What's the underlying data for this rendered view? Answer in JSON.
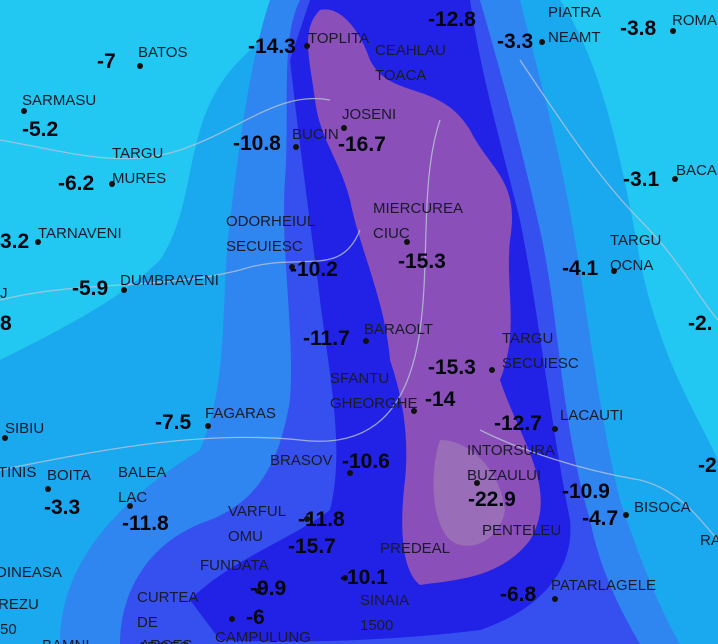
{
  "stations": [
    {
      "name": [
        "BATOS"
      ],
      "value": -7
    },
    {
      "name": [
        "TOPLITA"
      ],
      "value": -14.3
    },
    {
      "name": [
        "CEAHLAU",
        "TOACA"
      ]
    },
    {
      "name": [
        "PIATRA",
        "NEAMT"
      ],
      "value": -3.3
    },
    {
      "name": [
        "ROMA"
      ],
      "value": -3.8
    },
    {
      "name": [
        "SARMASU"
      ],
      "value": -5.2
    },
    {
      "name": [
        "JOSENI"
      ],
      "value": -16.7
    },
    {
      "name": [
        "BUCIN"
      ],
      "value": -10.8
    },
    {
      "name": [
        "TARGU",
        "MURES"
      ],
      "value": -6.2
    },
    {
      "name": [
        "BACA"
      ],
      "value": -3.1
    },
    {
      "name": [
        "MIERCUREA",
        "CIUC"
      ],
      "value": -15.3
    },
    {
      "name": [
        "ODORHEIUL",
        "SECUIESC"
      ],
      "value": -10.2
    },
    {
      "name": [
        "TARNAVENI"
      ],
      "value": "3.2"
    },
    {
      "name": [
        "TARGU",
        "OCNA"
      ],
      "value": -4.1
    },
    {
      "name": [
        "DUMBRAVENI"
      ],
      "value": -5.9
    },
    {
      "name": [
        "BARAOLT"
      ],
      "value": -11.7
    },
    {
      "name": [
        "TARGU",
        "SECUIESC"
      ],
      "value": -15.3
    },
    {
      "name": [
        "SFANTU",
        "GHEORGHE"
      ],
      "value": -14
    },
    {
      "name": [
        "FAGARAS"
      ],
      "value": -7.5
    },
    {
      "name": [
        "SIBIU"
      ]
    },
    {
      "name": [
        "LACAUTI"
      ],
      "value": -12.7
    },
    {
      "name": [
        "INTORSURA",
        "BUZAULUI"
      ],
      "value": -22.9
    },
    {
      "name": [
        "BRASOV"
      ],
      "value": -10.6
    },
    {
      "name": [
        "BOITA"
      ],
      "value": -3.3
    },
    {
      "name": [
        "BALEA",
        "LAC"
      ],
      "value": -11.8
    },
    {
      "name": [
        "BISOCA"
      ],
      "value": -4.7
    },
    {
      "name": [
        "VARFUL",
        "OMU"
      ],
      "value": -11.8
    },
    {
      "name": [
        "PREDEAL"
      ]
    },
    {
      "name": [
        "SINAIA",
        "1500"
      ],
      "value": -10.1
    },
    {
      "name": [
        "PENTELEU"
      ]
    },
    {
      "name": [
        "FUNDATA"
      ],
      "value": -9.9
    },
    {
      "name": [
        "PATARLAGELE"
      ],
      "value": -6.8
    },
    {
      "name": [
        "CURTEA",
        "DE",
        "ARGES"
      ]
    },
    {
      "name": [
        "CAMPULUNG"
      ],
      "value": -6
    }
  ],
  "readings": [
    {
      "value": -12.8
    },
    {
      "value": -10.9
    },
    {
      "value": -15.7
    }
  ],
  "fragments": [
    "J",
    "8",
    "-2.",
    "-2",
    "TINIS",
    "DINEASA",
    "REZU",
    "50",
    "RA",
    "BAMNI",
    "ARGES"
  ]
}
